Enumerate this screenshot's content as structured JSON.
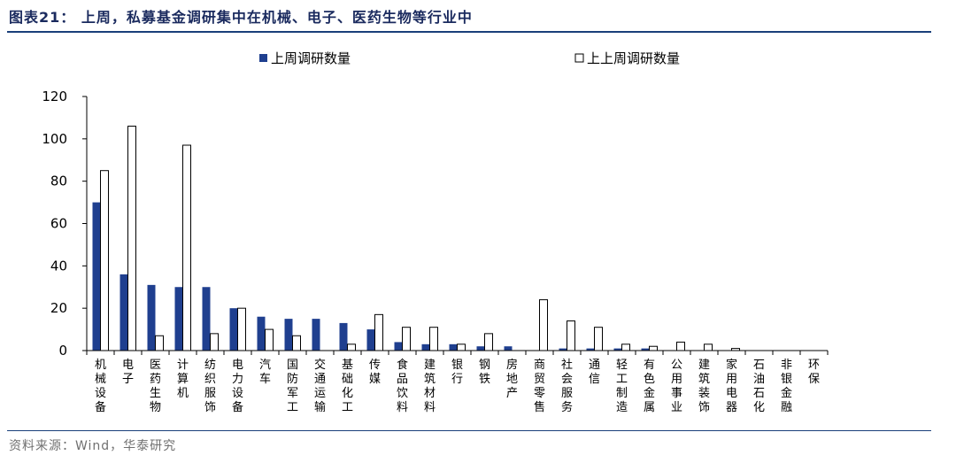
{
  "title": "图表21：  上周，私募基金调研集中在机械、电子、医药生物等行业中",
  "source": "资料来源：Wind，华泰研究",
  "colors": {
    "series1": "#1f3f8f",
    "series2": "#ffffff",
    "stroke": "#000000",
    "rule": "#1a3f7a"
  },
  "chart_data": {
    "type": "bar",
    "categories": [
      "机械设备",
      "电子",
      "医药生物",
      "计算机",
      "纺织服饰",
      "电力设备",
      "汽车",
      "国防军工",
      "交通运输",
      "基础化工",
      "传媒",
      "食品饮料",
      "建筑材料",
      "银行",
      "钢铁",
      "房地产",
      "商贸零售",
      "社会服务",
      "通信",
      "轻工制造",
      "有色金属",
      "公用事业",
      "建筑装饰",
      "家用电器",
      "石油石化",
      "非银金融",
      "环保"
    ],
    "series": [
      {
        "name": "上周调研数量",
        "values": [
          70,
          36,
          31,
          30,
          30,
          20,
          16,
          15,
          15,
          13,
          10,
          4,
          3,
          3,
          2,
          2,
          0,
          1,
          1,
          1,
          1,
          0,
          0,
          0,
          0,
          0,
          0
        ]
      },
      {
        "name": "上上周调研数量",
        "values": [
          85,
          106,
          7,
          97,
          8,
          20,
          10,
          7,
          0,
          3,
          17,
          11,
          11,
          3,
          8,
          0,
          24,
          14,
          11,
          3,
          2,
          4,
          3,
          1,
          0,
          0,
          0
        ]
      }
    ],
    "ylim": [
      0,
      120
    ],
    "yticks": [
      "0",
      "20",
      "40",
      "60",
      "80",
      "100",
      "120"
    ],
    "legend_position": "top-center",
    "grid": false
  }
}
